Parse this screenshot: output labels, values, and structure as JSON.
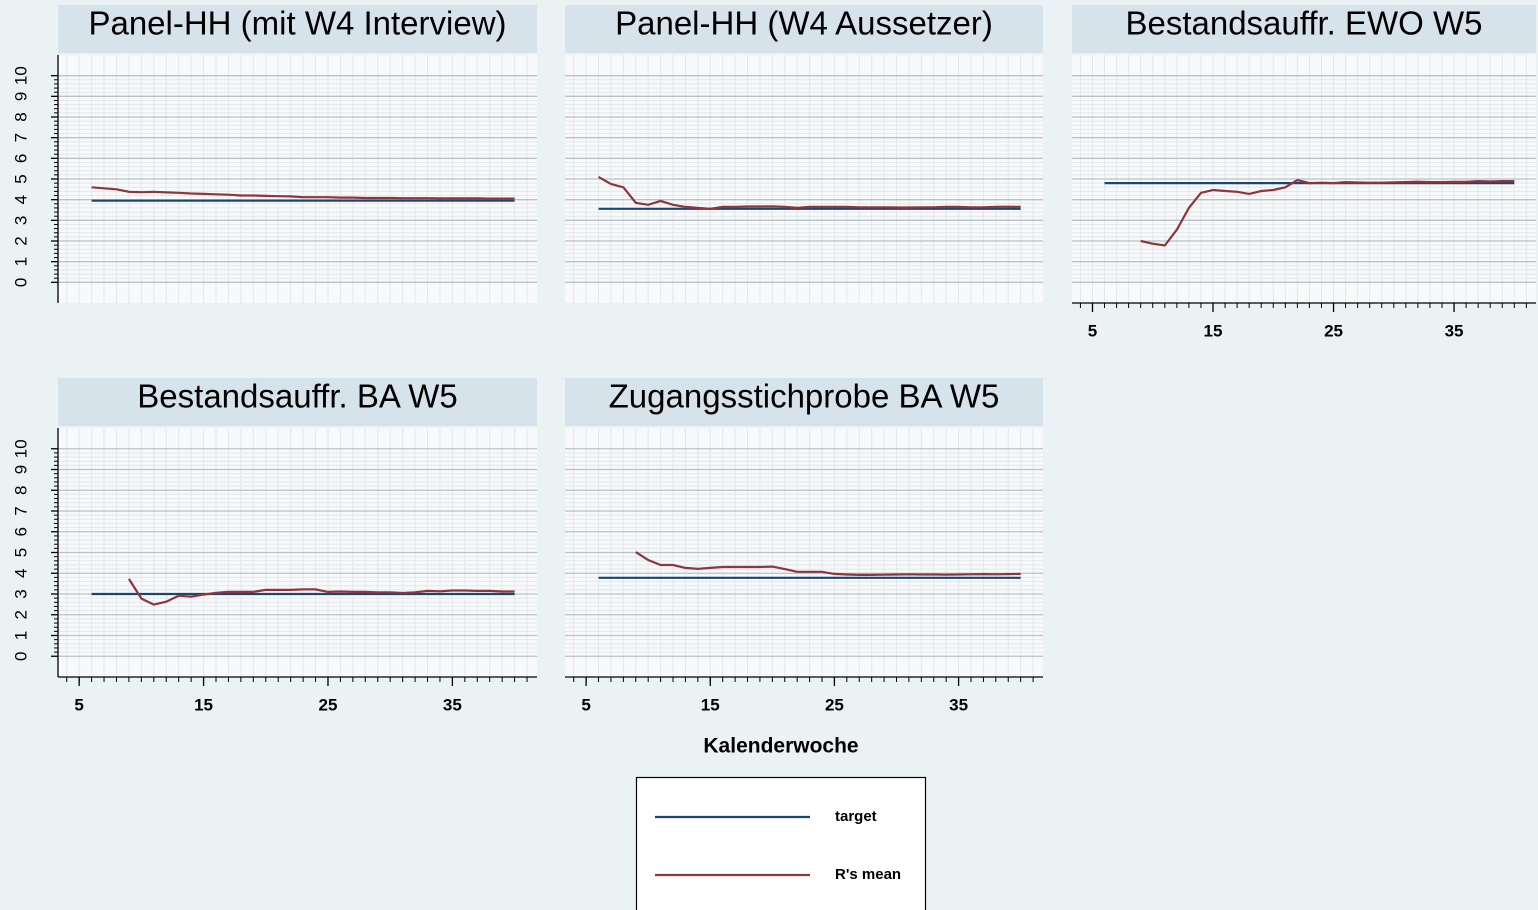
{
  "chart_data": [
    {
      "type": "line",
      "title": "Panel-HH (mit W4 Interview)",
      "x": [
        6,
        7,
        8,
        9,
        10,
        11,
        12,
        13,
        14,
        15,
        16,
        17,
        18,
        19,
        20,
        21,
        22,
        23,
        24,
        25,
        26,
        27,
        28,
        29,
        30,
        31,
        32,
        33,
        34,
        35,
        36,
        37,
        38,
        39,
        40
      ],
      "xlim": [
        3.3,
        41.8
      ],
      "ylim": [
        -1,
        11
      ],
      "yticks": [
        0,
        1,
        2,
        3,
        4,
        5,
        6,
        7,
        8,
        9,
        10
      ],
      "ytick_labels": true,
      "grid": true,
      "series": [
        {
          "name": "target",
          "color": "#1a476f",
          "values": [
            3.95,
            3.95,
            3.95,
            3.95,
            3.95,
            3.95,
            3.95,
            3.95,
            3.95,
            3.95,
            3.95,
            3.95,
            3.95,
            3.95,
            3.95,
            3.95,
            3.95,
            3.95,
            3.95,
            3.95,
            3.95,
            3.95,
            3.95,
            3.95,
            3.95,
            3.95,
            3.95,
            3.95,
            3.95,
            3.95,
            3.95,
            3.95,
            3.95,
            3.95,
            3.95
          ]
        },
        {
          "name": "R's mean",
          "color": "#90353b",
          "values": [
            4.6,
            4.55,
            4.5,
            4.38,
            4.36,
            4.38,
            4.35,
            4.33,
            4.3,
            4.28,
            4.26,
            4.24,
            4.2,
            4.2,
            4.18,
            4.17,
            4.16,
            4.12,
            4.12,
            4.12,
            4.1,
            4.1,
            4.08,
            4.08,
            4.08,
            4.07,
            4.07,
            4.07,
            4.06,
            4.06,
            4.06,
            4.06,
            4.05,
            4.05,
            4.05
          ]
        }
      ]
    },
    {
      "type": "line",
      "title": "Panel-HH (W4 Aussetzer)",
      "x": [
        6,
        7,
        8,
        9,
        10,
        11,
        12,
        13,
        14,
        15,
        16,
        17,
        18,
        19,
        20,
        21,
        22,
        23,
        24,
        25,
        26,
        27,
        28,
        29,
        30,
        31,
        32,
        33,
        34,
        35,
        36,
        37,
        38,
        39,
        40
      ],
      "xlim": [
        3.3,
        41.8
      ],
      "ylim": [
        -1,
        11
      ],
      "yticks": [
        0,
        1,
        2,
        3,
        4,
        5,
        6,
        7,
        8,
        9,
        10
      ],
      "ytick_labels": false,
      "grid": true,
      "series": [
        {
          "name": "target",
          "color": "#1a476f",
          "values": [
            3.56,
            3.56,
            3.56,
            3.56,
            3.56,
            3.56,
            3.56,
            3.56,
            3.56,
            3.56,
            3.56,
            3.56,
            3.56,
            3.56,
            3.56,
            3.56,
            3.56,
            3.56,
            3.56,
            3.56,
            3.56,
            3.56,
            3.56,
            3.56,
            3.56,
            3.56,
            3.56,
            3.56,
            3.56,
            3.56,
            3.56,
            3.56,
            3.56,
            3.56,
            3.56
          ]
        },
        {
          "name": "R's mean",
          "color": "#90353b",
          "values": [
            5.1,
            4.76,
            4.6,
            3.85,
            3.75,
            3.94,
            3.75,
            3.65,
            3.6,
            3.56,
            3.65,
            3.65,
            3.67,
            3.67,
            3.68,
            3.65,
            3.6,
            3.65,
            3.65,
            3.65,
            3.65,
            3.63,
            3.63,
            3.63,
            3.62,
            3.62,
            3.63,
            3.63,
            3.65,
            3.65,
            3.63,
            3.63,
            3.65,
            3.66,
            3.65
          ]
        }
      ]
    },
    {
      "type": "line",
      "title": "Bestandsauffr. EWO W5",
      "x": [
        6,
        7,
        8,
        9,
        10,
        11,
        12,
        13,
        14,
        15,
        16,
        17,
        18,
        19,
        20,
        21,
        22,
        23,
        24,
        25,
        26,
        27,
        28,
        29,
        30,
        31,
        32,
        33,
        34,
        35,
        36,
        37,
        38,
        39,
        40
      ],
      "xlim": [
        3.3,
        41.8
      ],
      "xticks": [
        5,
        15,
        25,
        35
      ],
      "ylim": [
        -1,
        11
      ],
      "yticks": [
        0,
        1,
        2,
        3,
        4,
        5,
        6,
        7,
        8,
        9,
        10
      ],
      "ytick_labels": false,
      "grid": true,
      "series": [
        {
          "name": "target",
          "color": "#1a476f",
          "values": [
            4.8,
            4.8,
            4.8,
            4.8,
            4.8,
            4.8,
            4.8,
            4.8,
            4.8,
            4.8,
            4.8,
            4.8,
            4.8,
            4.8,
            4.8,
            4.8,
            4.8,
            4.8,
            4.8,
            4.8,
            4.8,
            4.8,
            4.8,
            4.8,
            4.8,
            4.8,
            4.8,
            4.8,
            4.8,
            4.8,
            4.8,
            4.8,
            4.8,
            4.8,
            4.8
          ]
        },
        {
          "name": "R's mean",
          "color": "#90353b",
          "values": [
            null,
            null,
            null,
            2.0,
            1.87,
            1.78,
            2.55,
            3.6,
            4.33,
            4.47,
            4.42,
            4.38,
            4.28,
            4.42,
            4.47,
            4.6,
            4.95,
            4.8,
            4.82,
            4.8,
            4.85,
            4.83,
            4.82,
            4.82,
            4.84,
            4.85,
            4.87,
            4.85,
            4.85,
            4.86,
            4.86,
            4.9,
            4.88,
            4.9,
            4.9
          ]
        }
      ]
    },
    {
      "type": "line",
      "title": "Bestandsauffr. BA W5",
      "x": [
        6,
        7,
        8,
        9,
        10,
        11,
        12,
        13,
        14,
        15,
        16,
        17,
        18,
        19,
        20,
        21,
        22,
        23,
        24,
        25,
        26,
        27,
        28,
        29,
        30,
        31,
        32,
        33,
        34,
        35,
        36,
        37,
        38,
        39,
        40
      ],
      "xlim": [
        3.3,
        41.8
      ],
      "xticks": [
        5,
        15,
        25,
        35
      ],
      "ylim": [
        -1,
        11
      ],
      "yticks": [
        0,
        1,
        2,
        3,
        4,
        5,
        6,
        7,
        8,
        9,
        10
      ],
      "ytick_labels": true,
      "grid": true,
      "series": [
        {
          "name": "target",
          "color": "#1a476f",
          "values": [
            3.0,
            3.0,
            3.0,
            3.0,
            3.0,
            3.0,
            3.0,
            3.0,
            3.0,
            3.0,
            3.0,
            3.0,
            3.0,
            3.0,
            3.0,
            3.0,
            3.0,
            3.0,
            3.0,
            3.0,
            3.0,
            3.0,
            3.0,
            3.0,
            3.0,
            3.0,
            3.0,
            3.0,
            3.0,
            3.0,
            3.0,
            3.0,
            3.0,
            3.0,
            3.0
          ]
        },
        {
          "name": "R's mean",
          "color": "#90353b",
          "values": [
            null,
            null,
            null,
            3.73,
            2.78,
            2.49,
            2.63,
            2.92,
            2.87,
            2.97,
            3.06,
            3.1,
            3.1,
            3.1,
            3.2,
            3.2,
            3.2,
            3.22,
            3.22,
            3.1,
            3.12,
            3.1,
            3.1,
            3.08,
            3.08,
            3.05,
            3.08,
            3.15,
            3.13,
            3.17,
            3.17,
            3.15,
            3.15,
            3.12,
            3.12
          ]
        }
      ]
    },
    {
      "type": "line",
      "title": "Zugangsstichprobe BA W5",
      "x": [
        6,
        7,
        8,
        9,
        10,
        11,
        12,
        13,
        14,
        15,
        16,
        17,
        18,
        19,
        20,
        21,
        22,
        23,
        24,
        25,
        26,
        27,
        28,
        29,
        30,
        31,
        32,
        33,
        34,
        35,
        36,
        37,
        38,
        39,
        40
      ],
      "xlim": [
        3.3,
        41.8
      ],
      "xticks": [
        5,
        15,
        25,
        35
      ],
      "ylim": [
        -1,
        11
      ],
      "yticks": [
        0,
        1,
        2,
        3,
        4,
        5,
        6,
        7,
        8,
        9,
        10
      ],
      "ytick_labels": false,
      "grid": true,
      "series": [
        {
          "name": "target",
          "color": "#1a476f",
          "values": [
            3.78,
            3.78,
            3.78,
            3.78,
            3.78,
            3.78,
            3.78,
            3.78,
            3.78,
            3.78,
            3.78,
            3.78,
            3.78,
            3.78,
            3.78,
            3.78,
            3.78,
            3.78,
            3.78,
            3.78,
            3.78,
            3.78,
            3.78,
            3.78,
            3.78,
            3.78,
            3.78,
            3.78,
            3.78,
            3.78,
            3.78,
            3.78,
            3.78,
            3.78,
            3.78
          ]
        },
        {
          "name": "R's mean",
          "color": "#90353b",
          "values": [
            null,
            null,
            null,
            5.02,
            4.64,
            4.4,
            4.4,
            4.26,
            4.21,
            4.26,
            4.3,
            4.3,
            4.3,
            4.3,
            4.32,
            4.2,
            4.07,
            4.07,
            4.07,
            3.97,
            3.94,
            3.92,
            3.92,
            3.93,
            3.94,
            3.95,
            3.94,
            3.94,
            3.93,
            3.94,
            3.95,
            3.96,
            3.95,
            3.96,
            3.97
          ]
        }
      ]
    }
  ],
  "xlabel": "Kalenderwoche"
}
